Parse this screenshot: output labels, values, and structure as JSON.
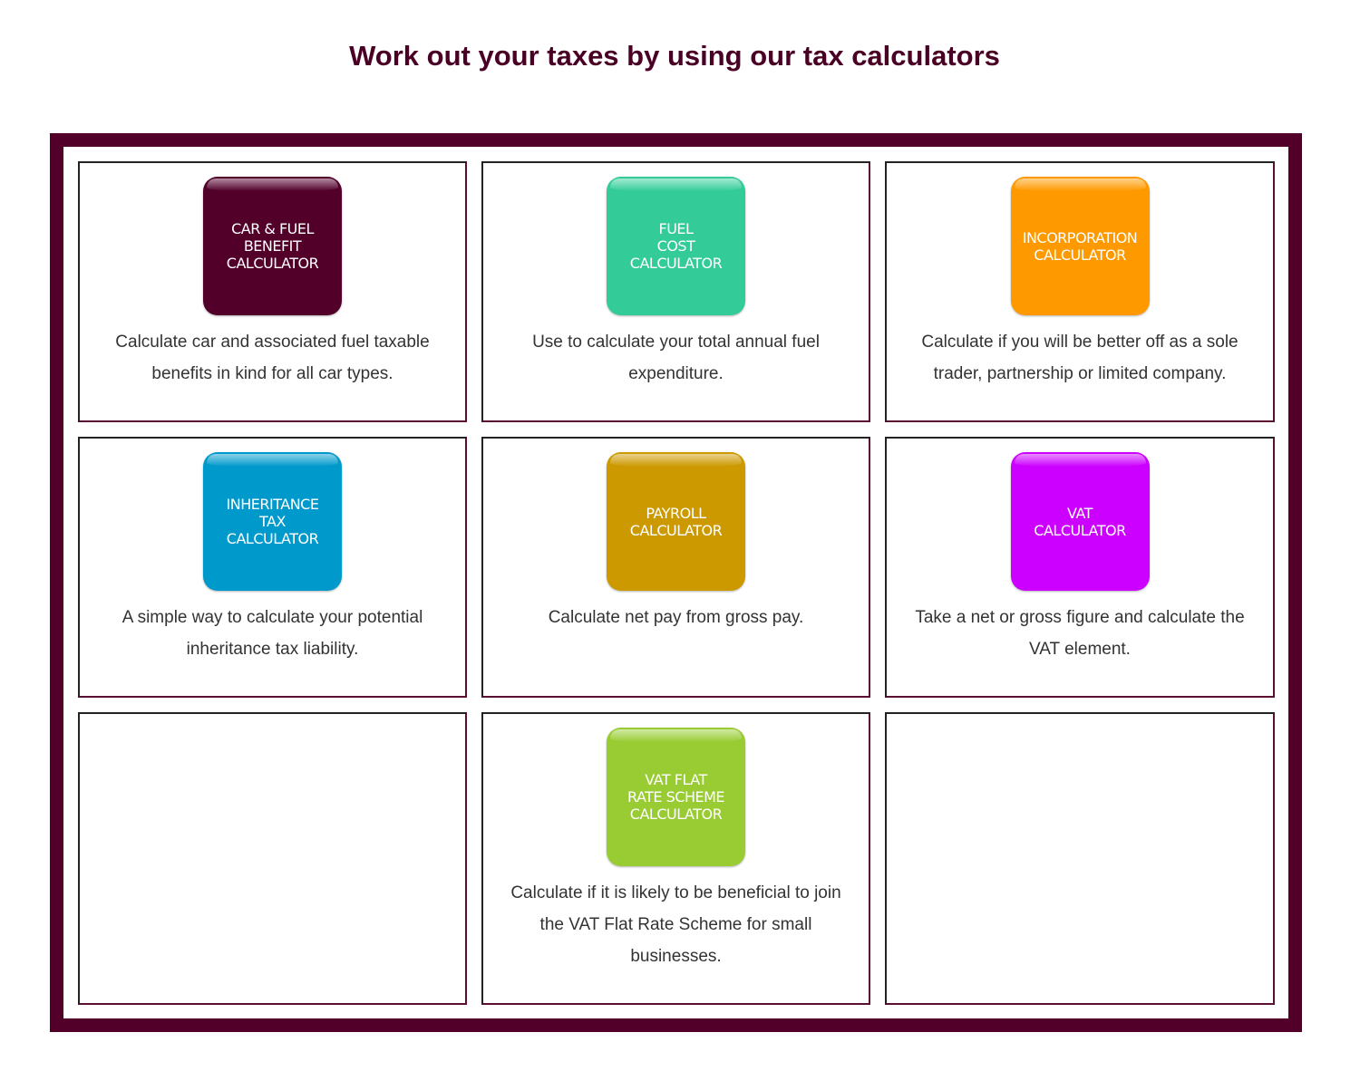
{
  "title": "Work out your taxes by using our tax calculators",
  "calculators": [
    {
      "label": "CAR & FUEL\nBENEFIT\nCALCULATOR",
      "color": "#52002a",
      "description": "Calculate car and associated fuel taxable benefits in kind for all car types."
    },
    {
      "label": "FUEL\nCOST\nCALCULATOR",
      "color": "#33cc99",
      "description": "Use to calculate your total annual fuel expenditure."
    },
    {
      "label": "INCORPORATION\nCALCULATOR",
      "color": "#ff9900",
      "description": "Calculate if you will be better off as a sole trader, partnership or limited company."
    },
    {
      "label": "INHERITANCE\nTAX\nCALCULATOR",
      "color": "#0099cc",
      "description": "A simple way to calculate your potential inheritance tax liability."
    },
    {
      "label": "PAYROLL\nCALCULATOR",
      "color": "#cc9900",
      "description": "Calculate net pay from gross pay."
    },
    {
      "label": "VAT\nCALCULATOR",
      "color": "#cc00ff",
      "description": "Take a net or gross figure and calculate the VAT element."
    },
    {
      "label": "VAT FLAT\nRATE SCHEME\nCALCULATOR",
      "color": "#99cc33",
      "description": "Calculate if it is likely to be beneficial to join the VAT Flat Rate Scheme for small businesses."
    }
  ]
}
